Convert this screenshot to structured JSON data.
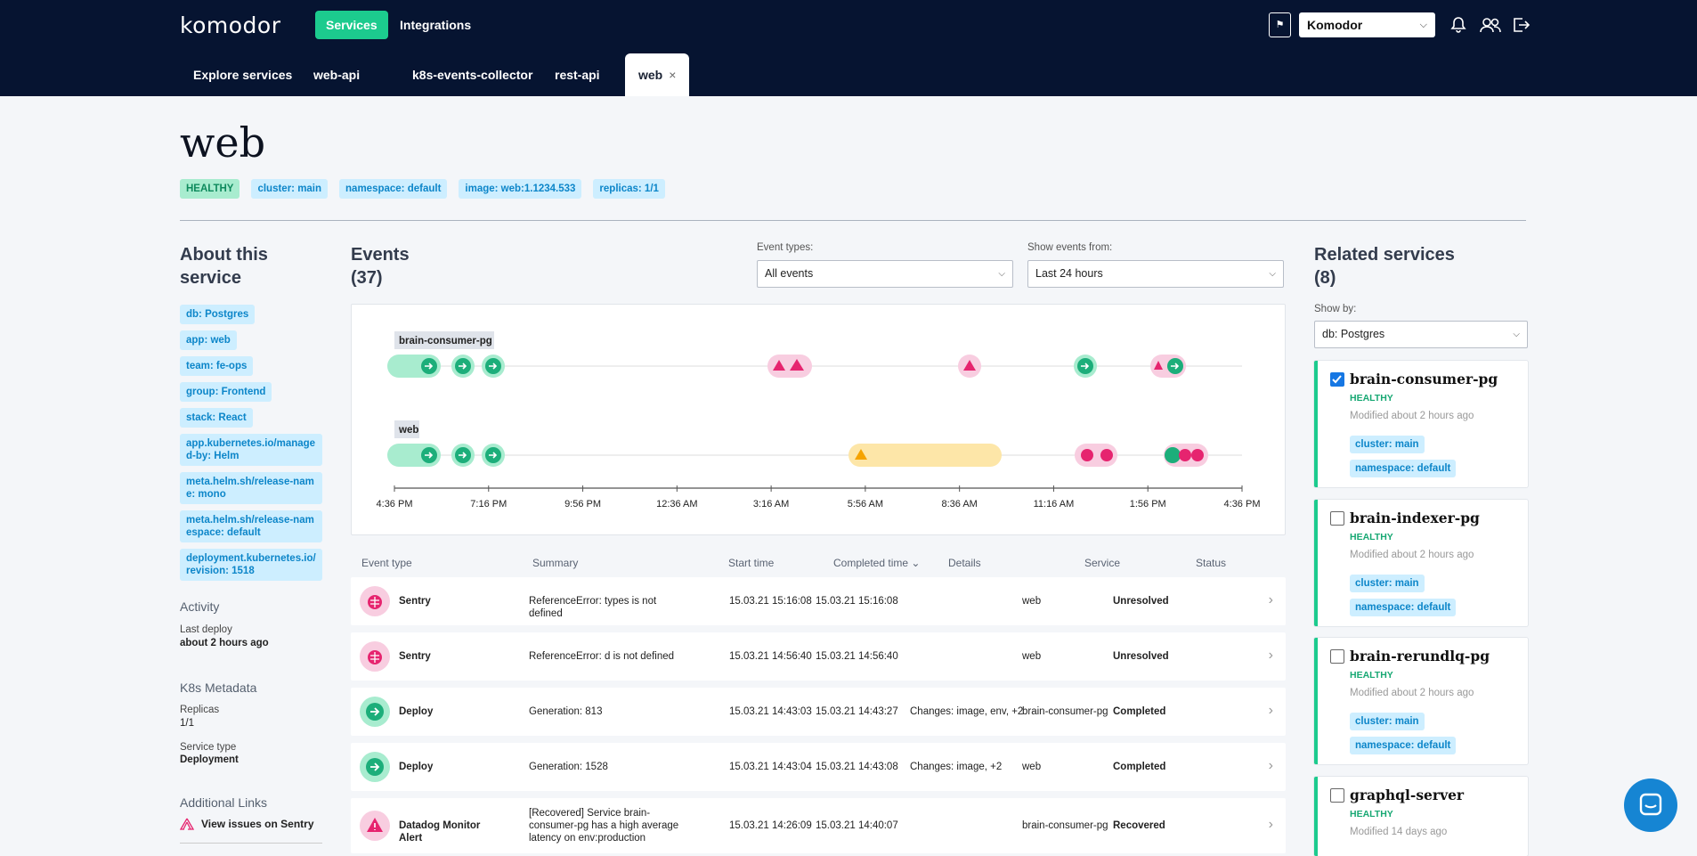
{
  "header": {
    "logo": "komodor",
    "nav": {
      "services": "Services",
      "integrations": "Integrations"
    },
    "flag_icon": "flag-icon",
    "account": "Komodor",
    "icons": [
      "bell-icon",
      "users-icon",
      "logout-icon"
    ]
  },
  "tabs": [
    {
      "label": "Explore services"
    },
    {
      "label": "web-api"
    },
    {
      "label": "k8s-events-collector"
    },
    {
      "label": "rest-api"
    },
    {
      "label": "web",
      "close": "×"
    }
  ],
  "service": {
    "title": "web",
    "badges": [
      "HEALTHY",
      "cluster: main",
      "namespace: default",
      "image: web:1.1234.533",
      "replicas: 1/1"
    ]
  },
  "about": {
    "title": "About this service",
    "tags": [
      "db: Postgres",
      "app: web",
      "team: fe-ops",
      "group: Frontend",
      "stack: React",
      "app.kubernetes.io/managed-by: Helm",
      "meta.helm.sh/release-name: mono",
      "meta.helm.sh/release-namespace: default",
      "deployment.kubernetes.io/revision: 1518"
    ],
    "activity": {
      "title": "Activity",
      "label": "Last deploy",
      "value": "about 2 hours ago"
    },
    "k8s": {
      "title": "K8s Metadata",
      "replicas_label": "Replicas",
      "replicas": "1/1",
      "type_label": "Service type",
      "type": "Deployment"
    },
    "links": {
      "title": "Additional Links",
      "sentry": "View issues on Sentry"
    }
  },
  "events": {
    "title": "Events",
    "count": "(37)",
    "event_types_label": "Event types:",
    "event_types_value": "All events",
    "show_from_label": "Show events from:",
    "show_from_value": "Last 24 hours",
    "timeline": {
      "lanes": [
        "brain-consumer-pg",
        "web"
      ],
      "ticks": [
        "4:36 PM",
        "7:16 PM",
        "9:56 PM",
        "12:36 AM",
        "3:16 AM",
        "5:56 AM",
        "8:36 AM",
        "11:16 AM",
        "1:56 PM",
        "4:36 PM"
      ]
    },
    "columns": [
      "Event type",
      "Summary",
      "Start time",
      "Completed time",
      "Details",
      "Service",
      "Status"
    ],
    "rows": [
      {
        "type": "Sentry",
        "icon": "bug-icon",
        "summary": "ReferenceError: types is not defined",
        "start": "15.03.21 15:16:08",
        "completed": "15.03.21 15:16:08",
        "details": "",
        "service": "web",
        "status": "Unresolved"
      },
      {
        "type": "Sentry",
        "icon": "bug-icon",
        "summary": "ReferenceError: d is not defined",
        "start": "15.03.21 14:56:40",
        "completed": "15.03.21 14:56:40",
        "details": "",
        "service": "web",
        "status": "Unresolved"
      },
      {
        "type": "Deploy",
        "icon": "deploy-arrow-icon",
        "summary": "Generation: 813",
        "start": "15.03.21 14:43:03",
        "completed": "15.03.21 14:43:27",
        "details": "Changes: image, env, +2",
        "service": "brain-consumer-pg",
        "status": "Completed"
      },
      {
        "type": "Deploy",
        "icon": "deploy-arrow-icon",
        "summary": "Generation: 1528",
        "start": "15.03.21 14:43:04",
        "completed": "15.03.21 14:43:08",
        "details": "Changes: image, +2",
        "service": "web",
        "status": "Completed"
      },
      {
        "type": "Datadog Monitor Alert",
        "icon": "alert-icon",
        "summary": "[Recovered] Service brain-consumer-pg has a high average latency on env:production",
        "start": "15.03.21 14:26:09",
        "completed": "15.03.21 14:40:07",
        "details": "",
        "service": "brain-consumer-pg",
        "status": "Recovered"
      }
    ]
  },
  "related": {
    "title": "Related services",
    "count": "(8)",
    "show_by_label": "Show by:",
    "show_by_value": "db: Postgres",
    "services": [
      {
        "name": "brain-consumer-pg",
        "checked": true,
        "health": "HEALTHY",
        "modified": "Modified about 2 hours ago",
        "tags": [
          "cluster: main",
          "namespace: default"
        ]
      },
      {
        "name": "brain-indexer-pg",
        "checked": false,
        "health": "HEALTHY",
        "modified": "Modified about 2 hours ago",
        "tags": [
          "cluster: main",
          "namespace: default"
        ]
      },
      {
        "name": "brain-rerundlq-pg",
        "checked": false,
        "health": "HEALTHY",
        "modified": "Modified about 2 hours ago",
        "tags": [
          "cluster: main",
          "namespace: default"
        ]
      },
      {
        "name": "graphql-server",
        "checked": false,
        "health": "HEALTHY",
        "modified": "Modified 14 days ago",
        "tags": []
      }
    ]
  },
  "colors": {
    "navy": "#061431",
    "green": "#1ccb8e",
    "pink": "#e6246f",
    "warn": "#f5a300",
    "blue": "#1685d3"
  }
}
